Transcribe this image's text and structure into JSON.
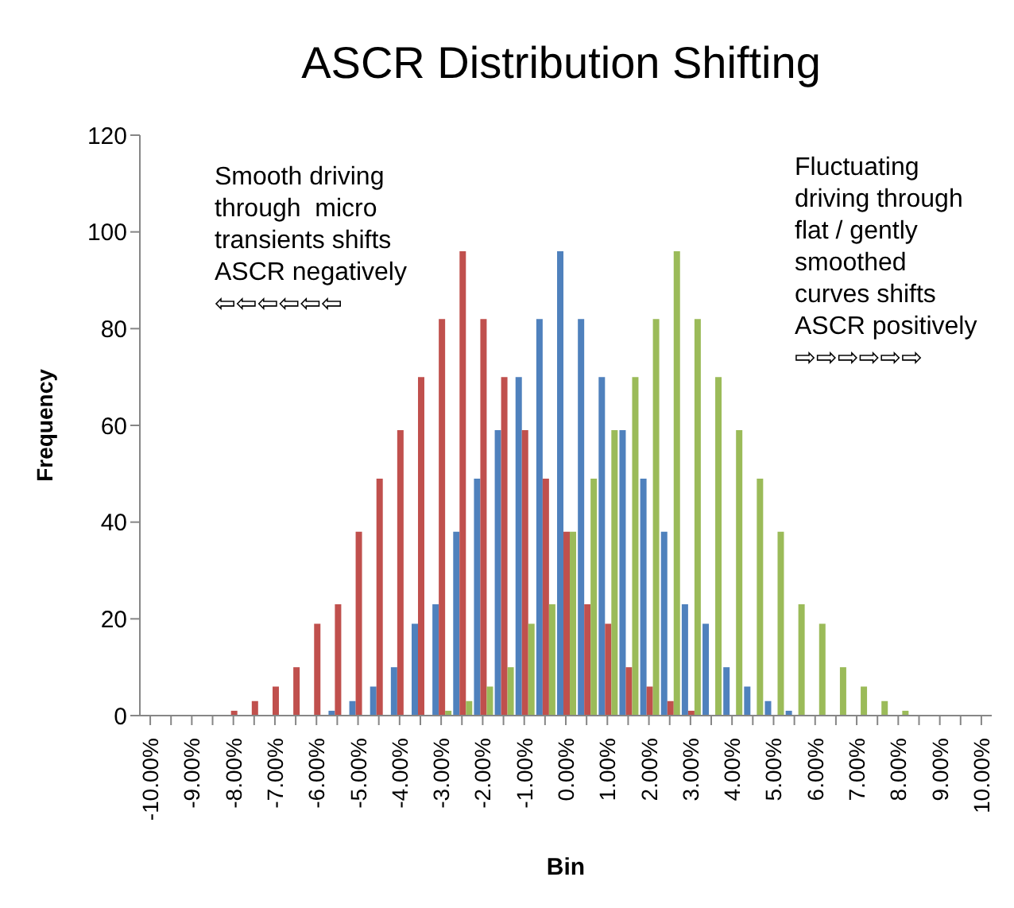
{
  "chart_data": {
    "type": "bar",
    "title": "ASCR Distribution Shifting",
    "xlabel": "Bin",
    "ylabel": "Frequency",
    "categories": [
      "-10.00%",
      null,
      "-9.00%",
      null,
      "-8.00%",
      null,
      "-7.00%",
      null,
      "-6.00%",
      null,
      "-5.00%",
      null,
      "-4.00%",
      null,
      "-3.00%",
      null,
      "-2.00%",
      null,
      "-1.00%",
      null,
      "0.00%",
      null,
      "1.00%",
      null,
      "2.00%",
      null,
      "3.00%",
      null,
      "4.00%",
      null,
      "5.00%",
      null,
      "6.00%",
      null,
      "7.00%",
      null,
      "8.00%",
      null,
      "9.00%",
      null,
      "10.00%"
    ],
    "series": [
      {
        "color": "#4f81bd",
        "values": [
          0,
          0,
          0,
          0,
          0,
          0,
          0,
          0,
          0,
          1,
          3,
          6,
          10,
          19,
          23,
          38,
          49,
          59,
          70,
          82,
          96,
          82,
          70,
          59,
          49,
          38,
          23,
          19,
          10,
          6,
          3,
          1,
          0,
          0,
          0,
          0,
          0,
          0,
          0,
          0,
          0
        ]
      },
      {
        "color": "#c0504d",
        "values": [
          0,
          0,
          0,
          0,
          1,
          3,
          6,
          10,
          19,
          23,
          38,
          49,
          59,
          70,
          82,
          96,
          82,
          70,
          59,
          49,
          38,
          23,
          19,
          10,
          6,
          3,
          1,
          0,
          0,
          0,
          0,
          0,
          0,
          0,
          0,
          0,
          0,
          0,
          0,
          0,
          0
        ]
      },
      {
        "color": "#9bbb59",
        "values": [
          0,
          0,
          0,
          0,
          0,
          0,
          0,
          0,
          0,
          0,
          0,
          0,
          0,
          0,
          1,
          3,
          6,
          10,
          19,
          23,
          38,
          49,
          59,
          70,
          82,
          96,
          82,
          70,
          59,
          49,
          38,
          23,
          19,
          10,
          6,
          3,
          1,
          0,
          0,
          0,
          0
        ]
      }
    ],
    "ylim": [
      0,
      120
    ],
    "yticks": [
      0,
      20,
      40,
      60,
      80,
      100,
      120
    ],
    "annotations": [
      "Smooth driving\nthrough  micro\ntransients shifts\nASCR negatively\n⇦⇦⇦⇦⇦⇦",
      "Fluctuating\ndriving through\nflat / gently\nsmoothed\ncurves shifts\nASCR positively\n⇨⇨⇨⇨⇨⇨"
    ]
  }
}
